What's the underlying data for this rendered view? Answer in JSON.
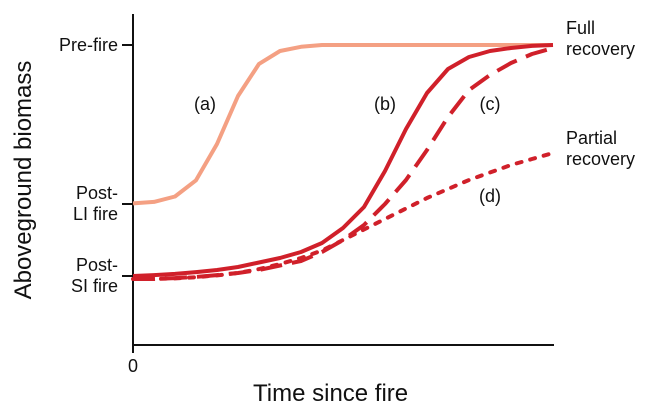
{
  "chart_data": {
    "type": "line",
    "xlabel": "Time since fire",
    "ylabel": "Aboveground biomass",
    "annotations": [
      "Full recovery",
      "Partial recovery"
    ],
    "xlim": [
      0,
      100
    ],
    "ylim": [
      0,
      110
    ],
    "xticks": [
      0
    ],
    "yticks": [
      {
        "value": 100,
        "label": "Pre-fire"
      },
      {
        "value": 47,
        "label": "Post-LI fire"
      },
      {
        "value": 23,
        "label": "Post-SI fire"
      }
    ],
    "x": [
      0,
      5,
      10,
      15,
      20,
      25,
      30,
      35,
      40,
      45,
      50,
      55,
      60,
      65,
      70,
      75,
      80,
      85,
      90,
      95,
      100
    ],
    "series": [
      {
        "name": "(a)",
        "color": "#f4a083",
        "style": "solid",
        "values": [
          47.2,
          47.7,
          49.5,
          54.9,
          67,
          83,
          93.7,
          98,
          99.4,
          100,
          100,
          100,
          100,
          100,
          100,
          100,
          100,
          100,
          100,
          100,
          100
        ]
      },
      {
        "name": "(b)",
        "color": "#d0202a",
        "style": "solid",
        "values": [
          23,
          23.3,
          23.7,
          24.3,
          25,
          26,
          27.5,
          29,
          31,
          34,
          39,
          46,
          58,
          72,
          84,
          92,
          96,
          98,
          99,
          99.7,
          100
        ]
      },
      {
        "name": "(c)",
        "color": "#d0202a",
        "style": "dashed",
        "values": [
          22,
          22,
          22.3,
          22.7,
          23.3,
          24,
          25,
          26.5,
          28,
          31,
          35,
          40,
          47,
          55,
          65,
          76,
          85,
          90,
          94,
          97,
          99
        ]
      },
      {
        "name": "(d)",
        "color": "#d0202a",
        "style": "dotted",
        "values": [
          22,
          22,
          22.2,
          22.6,
          23.2,
          24,
          25.3,
          27,
          29,
          31.5,
          35,
          38.5,
          42,
          45.5,
          49,
          52,
          55,
          57.5,
          60,
          62,
          64
        ]
      }
    ]
  }
}
